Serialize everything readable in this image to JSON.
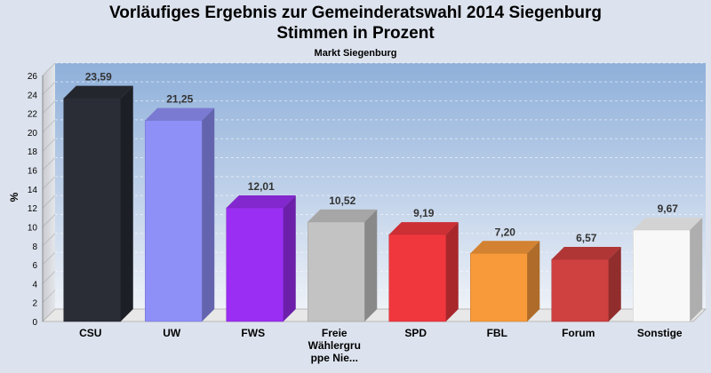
{
  "chart_data": {
    "type": "bar",
    "title_line1": "Vorläufiges Ergebnis zur Gemeinderatswahl 2014 Siegenburg",
    "title_line2": "Stimmen in Prozent",
    "subtitle": "Markt Siegenburg",
    "ylabel": "%",
    "xlabel": "",
    "ylim": [
      0,
      26
    ],
    "yticks": [
      0,
      2,
      4,
      6,
      8,
      10,
      12,
      14,
      16,
      18,
      20,
      22,
      24,
      26
    ],
    "grid": true,
    "categories": [
      "CSU",
      "UW",
      "FWS",
      "Freie Wählergruppe Nie...",
      "SPD",
      "FBL",
      "Forum",
      "Sonstige"
    ],
    "category_label_lines": [
      [
        "CSU"
      ],
      [
        "UW"
      ],
      [
        "FWS"
      ],
      [
        "Freie",
        "Wählergru",
        "ppe Nie..."
      ],
      [
        "SPD"
      ],
      [
        "FBL"
      ],
      [
        "Forum"
      ],
      [
        "Sonstige"
      ]
    ],
    "values": [
      23.59,
      21.25,
      12.01,
      10.52,
      9.19,
      7.2,
      6.57,
      9.67
    ],
    "value_labels": [
      "23,59",
      "21,25",
      "12,01",
      "10,52",
      "9,19",
      "7,20",
      "6,57",
      "9,67"
    ],
    "colors": [
      "#2a2d36",
      "#8f8ff8",
      "#9a2ef2",
      "#c3c3c3",
      "#f0373d",
      "#f8993a",
      "#cf4040",
      "#f8f8f8"
    ]
  }
}
